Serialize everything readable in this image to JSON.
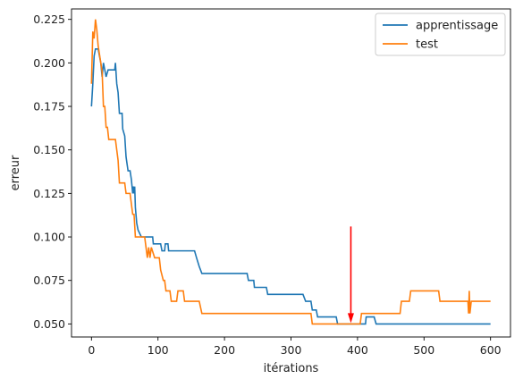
{
  "chart_data": {
    "type": "line",
    "title": "",
    "xlabel": "itérations",
    "ylabel": "erreur",
    "xlim": [
      -30,
      630
    ],
    "ylim": [
      0.0425,
      0.231
    ],
    "xticks": [
      0,
      100,
      200,
      300,
      400,
      500,
      600
    ],
    "xtick_labels": [
      "0",
      "100",
      "200",
      "300",
      "400",
      "500",
      "600"
    ],
    "yticks": [
      0.05,
      0.075,
      0.1,
      0.125,
      0.15,
      0.175,
      0.2,
      0.225
    ],
    "ytick_labels": [
      "0.050",
      "0.075",
      "0.100",
      "0.125",
      "0.150",
      "0.175",
      "0.200",
      "0.225"
    ],
    "grid": false,
    "legend_position": "top-right",
    "series": [
      {
        "name": "apprentissage",
        "color": "#1f77b4",
        "points": [
          [
            0,
            0.175
          ],
          [
            2,
            0.188
          ],
          [
            4,
            0.204
          ],
          [
            6,
            0.208
          ],
          [
            10,
            0.208
          ],
          [
            12,
            0.204
          ],
          [
            14,
            0.2
          ],
          [
            16,
            0.192
          ],
          [
            18,
            0.2
          ],
          [
            20,
            0.196
          ],
          [
            22,
            0.192
          ],
          [
            25,
            0.196
          ],
          [
            35,
            0.196
          ],
          [
            36,
            0.2
          ],
          [
            38,
            0.188
          ],
          [
            40,
            0.183
          ],
          [
            42,
            0.171
          ],
          [
            46,
            0.171
          ],
          [
            47,
            0.162
          ],
          [
            50,
            0.158
          ],
          [
            52,
            0.146
          ],
          [
            55,
            0.138
          ],
          [
            58,
            0.138
          ],
          [
            60,
            0.133
          ],
          [
            62,
            0.125
          ],
          [
            63,
            0.129
          ],
          [
            64,
            0.125
          ],
          [
            65,
            0.129
          ],
          [
            66,
            0.117
          ],
          [
            68,
            0.108
          ],
          [
            70,
            0.104
          ],
          [
            75,
            0.1
          ],
          [
            92,
            0.1
          ],
          [
            93,
            0.096
          ],
          [
            104,
            0.096
          ],
          [
            106,
            0.092
          ],
          [
            110,
            0.092
          ],
          [
            111,
            0.096
          ],
          [
            115,
            0.096
          ],
          [
            116,
            0.092
          ],
          [
            155,
            0.092
          ],
          [
            158,
            0.088
          ],
          [
            162,
            0.083
          ],
          [
            166,
            0.079
          ],
          [
            234,
            0.079
          ],
          [
            236,
            0.075
          ],
          [
            244,
            0.075
          ],
          [
            245,
            0.071
          ],
          [
            263,
            0.071
          ],
          [
            265,
            0.067
          ],
          [
            318,
            0.067
          ],
          [
            322,
            0.063
          ],
          [
            330,
            0.063
          ],
          [
            332,
            0.058
          ],
          [
            338,
            0.058
          ],
          [
            340,
            0.054
          ],
          [
            368,
            0.054
          ],
          [
            370,
            0.05
          ],
          [
            412,
            0.05
          ],
          [
            413,
            0.054
          ],
          [
            425,
            0.054
          ],
          [
            428,
            0.05
          ],
          [
            600,
            0.05
          ]
        ]
      },
      {
        "name": "test",
        "color": "#ff7f0e",
        "points": [
          [
            0,
            0.188
          ],
          [
            2,
            0.218
          ],
          [
            4,
            0.214
          ],
          [
            6,
            0.225
          ],
          [
            8,
            0.219
          ],
          [
            10,
            0.21
          ],
          [
            12,
            0.205
          ],
          [
            16,
            0.195
          ],
          [
            18,
            0.175
          ],
          [
            20,
            0.175
          ],
          [
            22,
            0.163
          ],
          [
            24,
            0.163
          ],
          [
            26,
            0.156
          ],
          [
            36,
            0.156
          ],
          [
            38,
            0.15
          ],
          [
            40,
            0.144
          ],
          [
            42,
            0.131
          ],
          [
            50,
            0.131
          ],
          [
            52,
            0.125
          ],
          [
            58,
            0.125
          ],
          [
            60,
            0.119
          ],
          [
            62,
            0.113
          ],
          [
            64,
            0.113
          ],
          [
            66,
            0.1
          ],
          [
            80,
            0.1
          ],
          [
            82,
            0.094
          ],
          [
            84,
            0.088
          ],
          [
            86,
            0.094
          ],
          [
            88,
            0.088
          ],
          [
            90,
            0.094
          ],
          [
            95,
            0.088
          ],
          [
            102,
            0.088
          ],
          [
            104,
            0.081
          ],
          [
            108,
            0.075
          ],
          [
            110,
            0.075
          ],
          [
            112,
            0.069
          ],
          [
            118,
            0.069
          ],
          [
            120,
            0.063
          ],
          [
            128,
            0.063
          ],
          [
            130,
            0.069
          ],
          [
            138,
            0.069
          ],
          [
            140,
            0.063
          ],
          [
            160,
            0.063
          ],
          [
            162,
            0.063
          ],
          [
            166,
            0.056
          ],
          [
            330,
            0.056
          ],
          [
            332,
            0.05
          ],
          [
            404,
            0.05
          ],
          [
            406,
            0.056
          ],
          [
            464,
            0.056
          ],
          [
            466,
            0.063
          ],
          [
            478,
            0.063
          ],
          [
            480,
            0.069
          ],
          [
            522,
            0.069
          ],
          [
            524,
            0.063
          ],
          [
            566,
            0.063
          ],
          [
            567,
            0.056
          ],
          [
            568,
            0.069
          ],
          [
            569,
            0.056
          ],
          [
            571,
            0.063
          ],
          [
            600,
            0.063
          ]
        ]
      }
    ],
    "annotations": [
      {
        "type": "arrow",
        "color": "#ff0000",
        "x": 390,
        "y_from": 0.106,
        "y_to": 0.0505
      }
    ]
  }
}
